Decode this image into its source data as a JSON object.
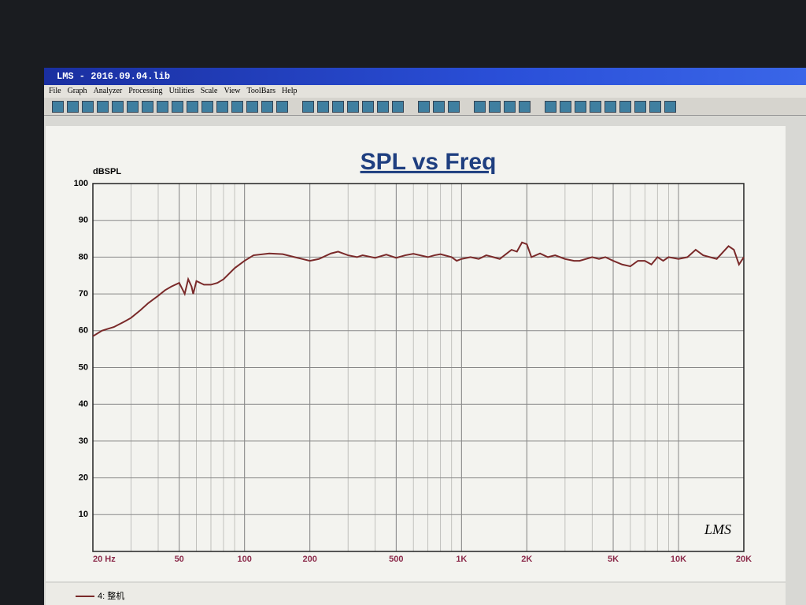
{
  "window": {
    "title": "LMS - 2016.09.04.lib",
    "menu": [
      "File",
      "Graph",
      "Analyzer",
      "Processing",
      "Utilities",
      "Scale",
      "View",
      "ToolBars",
      "Help"
    ]
  },
  "chart_data": {
    "type": "line",
    "title": "SPL vs Freq",
    "y_label": "dBSPL",
    "watermark": "LMS",
    "x_scale": "log",
    "grid": true,
    "xlim": [
      20,
      20000
    ],
    "xticks": [
      {
        "value": 20,
        "label": "20 Hz"
      },
      50,
      100,
      200,
      500,
      {
        "value": 1000,
        "label": "1K"
      },
      {
        "value": 2000,
        "label": "2K"
      },
      {
        "value": 5000,
        "label": "5K"
      },
      {
        "value": 10000,
        "label": "10K"
      },
      {
        "value": 20000,
        "label": "20K"
      }
    ],
    "ylim": [
      0,
      100
    ],
    "yticks": [
      10,
      20,
      30,
      40,
      50,
      60,
      70,
      80,
      90,
      100
    ],
    "x": [
      20,
      22,
      25,
      28,
      30,
      33,
      36,
      40,
      43,
      46,
      50,
      52,
      53,
      55,
      57,
      58,
      60,
      65,
      70,
      75,
      80,
      90,
      100,
      110,
      130,
      150,
      170,
      200,
      220,
      250,
      270,
      300,
      330,
      350,
      400,
      450,
      500,
      550,
      600,
      700,
      750,
      800,
      900,
      950,
      1000,
      1100,
      1200,
      1300,
      1400,
      1500,
      1700,
      1800,
      1900,
      2000,
      2100,
      2300,
      2500,
      2700,
      3000,
      3300,
      3500,
      4000,
      4300,
      4600,
      5000,
      5500,
      6000,
      6500,
      7000,
      7500,
      8000,
      8500,
      9000,
      10000,
      11000,
      12000,
      13000,
      15000,
      17000,
      18000,
      19000,
      20000
    ],
    "series": [
      {
        "name": "4: 整机",
        "color": "#7a2a2a",
        "values": [
          58.5,
          60,
          61,
          62.5,
          63.5,
          65.5,
          67.5,
          69.5,
          71,
          72,
          73,
          71,
          70,
          74,
          72,
          70,
          73.5,
          72.5,
          72.5,
          73,
          74,
          77,
          79,
          80.5,
          81,
          80.8,
          80,
          79,
          79.5,
          81,
          81.5,
          80.5,
          80,
          80.5,
          79.8,
          80.7,
          79.8,
          80.5,
          80.9,
          80,
          80.5,
          80.8,
          80,
          79,
          79.5,
          80,
          79.5,
          80.5,
          80,
          79.5,
          82,
          81.5,
          84,
          83.5,
          80,
          81,
          80,
          80.5,
          79.5,
          79,
          79,
          80,
          79.5,
          80,
          79,
          78,
          77.5,
          79,
          79,
          78,
          80,
          79,
          80,
          79.5,
          80,
          82,
          80.5,
          79.5,
          83,
          82,
          78,
          80
        ]
      }
    ]
  }
}
